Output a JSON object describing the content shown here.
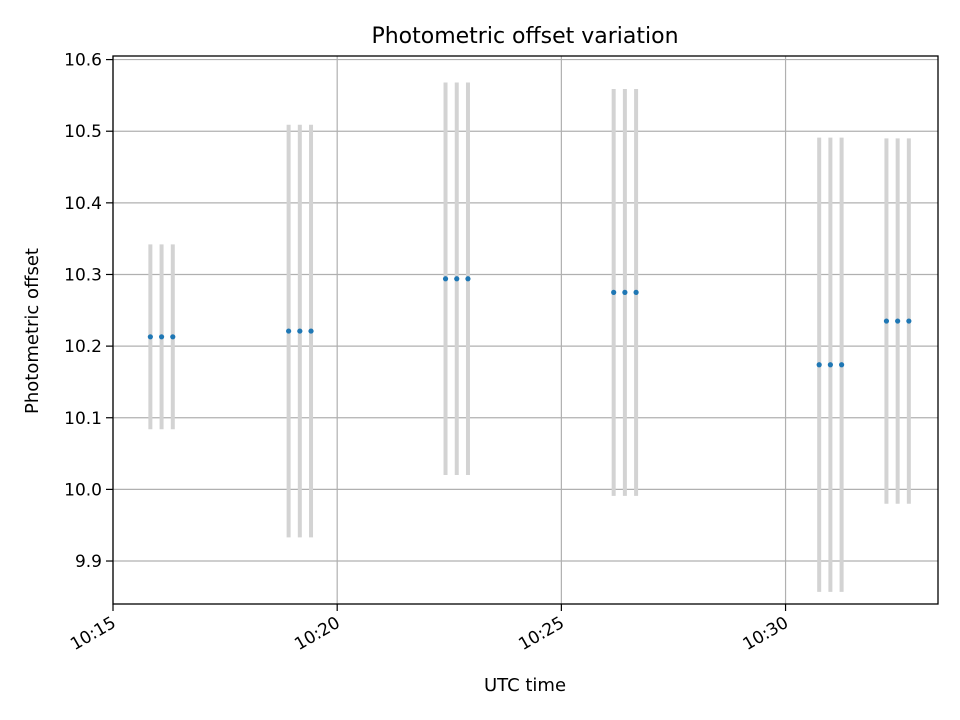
{
  "chart_data": {
    "type": "scatter",
    "title": "Photometric offset variation",
    "xlabel": "UTC time",
    "ylabel": "Photometric offset",
    "xlim": [
      "10:15:00",
      "10:33:24"
    ],
    "ylim": [
      9.84,
      10.605
    ],
    "xticks": [
      "10:15",
      "10:20",
      "10:25",
      "10:30"
    ],
    "yticks": [
      9.9,
      10.0,
      10.1,
      10.2,
      10.3,
      10.4,
      10.5,
      10.6
    ],
    "ytick_labels": [
      "9.9",
      "10.0",
      "10.1",
      "10.2",
      "10.3",
      "10.4",
      "10.5",
      "10.6"
    ],
    "grid": true,
    "colors": {
      "points": "#1f77b4",
      "errorbars": "#d3d3d3",
      "grid": "#b0b0b0"
    },
    "series": [
      {
        "x": [
          "10:15:50",
          "10:16:05",
          "10:16:20",
          "10:18:55",
          "10:19:10",
          "10:19:25",
          "10:22:25",
          "10:22:40",
          "10:22:55",
          "10:26:10",
          "10:26:25",
          "10:26:40",
          "10:30:45",
          "10:31:00",
          "10:31:15",
          "10:32:15",
          "10:32:30",
          "10:32:45"
        ],
        "y": [
          10.213,
          10.213,
          10.213,
          10.221,
          10.221,
          10.221,
          10.294,
          10.294,
          10.294,
          10.275,
          10.275,
          10.275,
          10.174,
          10.174,
          10.174,
          10.235,
          10.235,
          10.235
        ],
        "yerr": [
          0.129,
          0.129,
          0.129,
          0.288,
          0.288,
          0.288,
          0.274,
          0.274,
          0.274,
          0.284,
          0.284,
          0.284,
          0.317,
          0.317,
          0.317,
          0.255,
          0.255,
          0.255
        ]
      }
    ]
  }
}
